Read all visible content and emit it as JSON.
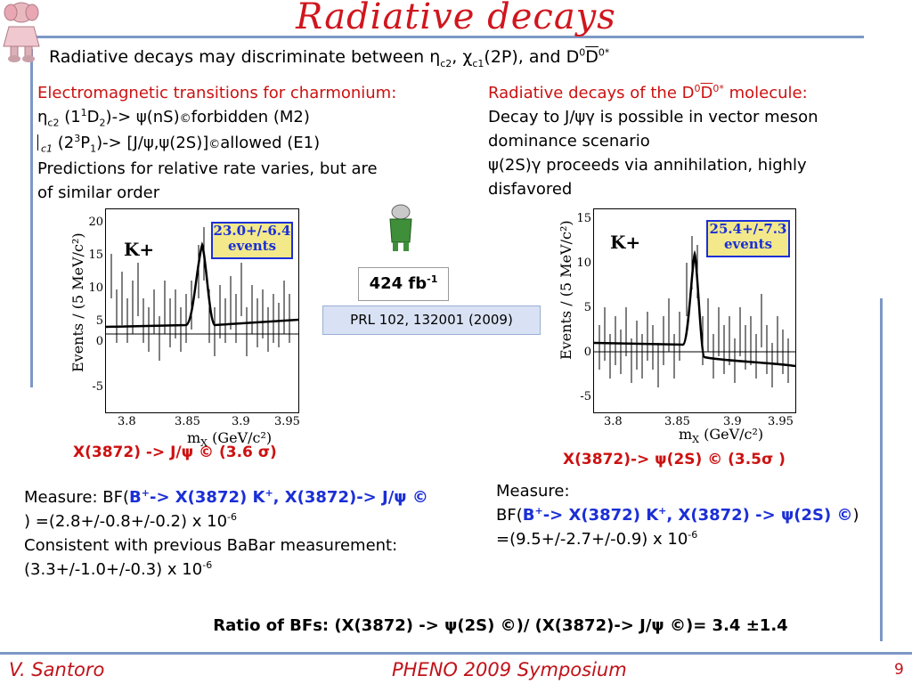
{
  "title": "Radiative decays",
  "intro": {
    "text": "Radiative decays may discriminate between η",
    "sub1": "c2",
    "mid1": ", χ",
    "sub2": "c1",
    "mid2": "(2P), and D",
    "sup1": "0",
    "mid3": "D",
    "sup2": "0*"
  },
  "left_col": {
    "heading": "Electromagnetic transitions for charmonium:",
    "line1_a": "η",
    "line1_sub": "c2",
    "line1_b": " (1",
    "line1_sup": "1",
    "line1_c": "D",
    "line1_sub2": "2",
    "line1_d": ")-> ψ(nS)",
    "line1_e": "forbidden (M2)",
    "line2_a": "c1",
    "line2_b": " (2",
    "line2_sup": "3",
    "line2_c": "P",
    "line2_sub": "1",
    "line2_d": ")-> [J/ψ,ψ(2S)]",
    "line2_e": "allowed (E1)",
    "line3": "Predictions for relative rate varies, but are",
    "line4": "of similar order"
  },
  "right_col": {
    "heading_a": "Radiative decays of the D",
    "heading_sup1": "0",
    "heading_b": "D",
    "heading_sup2": "0*",
    "heading_c": " molecule:",
    "line1": "Decay to J/ψγ is possible in vector meson",
    "line2": "dominance scenario",
    "line3": " ψ(2S)γ proceeds via annihilation, highly",
    "line4": "disfavored"
  },
  "lumi_a": "424 fb",
  "lumi_sup": "-1",
  "prl": "PRL 102, 132001 (2009)",
  "plots": [
    {
      "tag": "K+",
      "badge_1": "23.0+/-6.4",
      "badge_2": "events",
      "ylabel": "Events / (5 MeV/c²)",
      "xlabel": "m",
      "xlabel_sub": "X",
      "xlabel_rest": " (GeV/c²)",
      "xticks": [
        "3.8",
        "3.85",
        "3.9",
        "3.95"
      ],
      "yticks": [
        "-5",
        "0",
        "5",
        "10",
        "15",
        "20"
      ]
    },
    {
      "tag": "K+",
      "badge_1": "25.4+/-7.3",
      "badge_2": "events",
      "ylabel": "Events / (5 MeV/c²)",
      "xlabel": "m",
      "xlabel_sub": "X",
      "xlabel_rest": " (GeV/c²)",
      "xticks": [
        "3.8",
        "3.85",
        "3.9",
        "3.95"
      ],
      "yticks": [
        "-5",
        "0",
        "5",
        "10",
        "15"
      ]
    }
  ],
  "caption_left": "X(3872)  -> J/ψ © (3.6 σ)",
  "caption_right": "X(3872)->  ψ(2S) © (3.5σ )",
  "measure_left": {
    "a": "Measure: BF(",
    "b": "B",
    "b_sup": "+",
    "c": "-> X(3872) K",
    "c_sup": "+",
    "d": ", X(3872)->  J/ψ ©",
    "e": ") =(2.8+/-0.8+/-0.2) x 10",
    "e_sup": "-6",
    "f": "Consistent with previous BaBar measurement:",
    "g": "(3.3+/-1.0+/-0.3) x 10",
    "g_sup": "-6"
  },
  "measure_right": {
    "a": "Measure:",
    "b": "BF(",
    "c": "B",
    "c_sup": "+",
    "d": "-> X(3872) K",
    "d_sup": "+",
    "e": ", X(3872) -> ψ(2S) ©",
    "f": ")",
    "g": "=(9.5+/-2.7+/-0.9) x 10",
    "g_sup": "-6"
  },
  "ratio": "Ratio of BFs:  (X(3872) -> ψ(2S) ©)/ (X(3872)->  J/ψ ©)= 3.4  ±1.4",
  "footer": {
    "author": "V. Santoro",
    "event": "PHENO 2009 Symposium",
    "page": "9"
  },
  "colors": {
    "title": "#d0161e",
    "rule": "#7c98c5",
    "heading_red": "#cc1111",
    "highlight_blue": "#1b2fd6",
    "badge_fill": "#f3e98a"
  }
}
